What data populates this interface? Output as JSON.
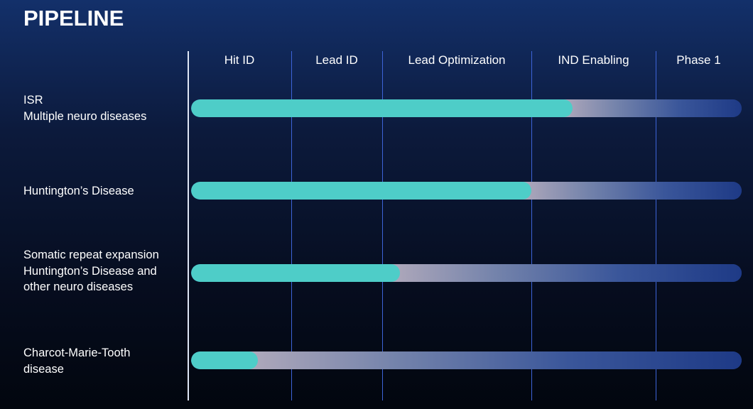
{
  "title": "PIPELINE",
  "colors": {
    "progress": "#4ecdc8",
    "divider": "#3d64d8",
    "track": "#1e3a86"
  },
  "chart_data": {
    "type": "bar",
    "orientation": "horizontal",
    "stages": [
      "Hit ID",
      "Lead ID",
      "Lead Optimization",
      "IND Enabling",
      "Phase 1"
    ],
    "programs": [
      {
        "lines": [
          "ISR",
          "Multiple neuro diseases"
        ],
        "progress_stage": 3.33
      },
      {
        "lines": [
          "Huntington’s Disease"
        ],
        "progress_stage": 3.0
      },
      {
        "lines": [
          "Somatic repeat expansion",
          "Huntington’s Disease and",
          "other neuro diseases"
        ],
        "progress_stage": 2.12
      },
      {
        "lines": [
          "Charcot-Marie-Tooth",
          "disease"
        ],
        "progress_stage": 0.68
      }
    ],
    "xlim": [
      0,
      5
    ]
  }
}
